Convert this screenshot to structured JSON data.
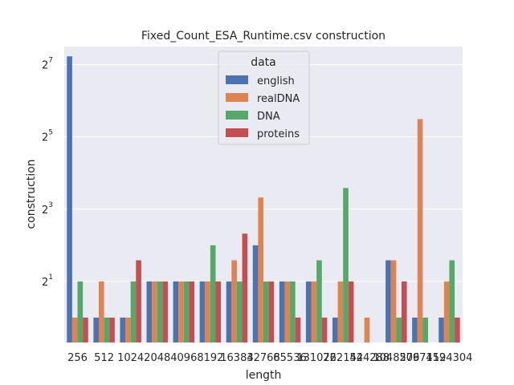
{
  "chart_data": {
    "type": "bar",
    "title": "Fixed_Count_ESA_Runtime.csv construction",
    "xlabel": "length",
    "ylabel": "construction",
    "yscale": "log2",
    "ylim": [
      0.62,
      181
    ],
    "yticks": [
      {
        "value": 2,
        "base": "2",
        "exp": "1"
      },
      {
        "value": 8,
        "base": "2",
        "exp": "3"
      },
      {
        "value": 32,
        "base": "2",
        "exp": "5"
      },
      {
        "value": 128,
        "base": "2",
        "exp": "7"
      }
    ],
    "categories": [
      "256",
      "512",
      "1024",
      "2048",
      "4096",
      "8192",
      "16384",
      "32768",
      "65536",
      "131072",
      "262144",
      "524288",
      "1048576",
      "2097152",
      "4194304"
    ],
    "legend": {
      "title": "data",
      "position": "top-center"
    },
    "grid": true,
    "series": [
      {
        "name": "english",
        "color": "#4c72b0",
        "values": [
          150,
          1,
          1,
          2,
          2,
          2,
          2,
          4,
          2,
          2,
          1,
          null,
          3,
          1,
          1
        ]
      },
      {
        "name": "realDNA",
        "color": "#dd8452",
        "values": [
          1,
          2,
          1,
          2,
          2,
          2,
          3,
          10,
          2,
          2,
          2,
          1,
          3,
          45,
          2
        ]
      },
      {
        "name": "DNA",
        "color": "#55a868",
        "values": [
          2,
          1,
          2,
          2,
          2,
          4,
          2,
          2,
          2,
          3,
          12,
          null,
          1,
          1,
          3
        ]
      },
      {
        "name": "proteins",
        "color": "#c44e52",
        "values": [
          1,
          1,
          3,
          2,
          2,
          2,
          5,
          2,
          1,
          1,
          2,
          null,
          2,
          null,
          1
        ]
      }
    ]
  }
}
